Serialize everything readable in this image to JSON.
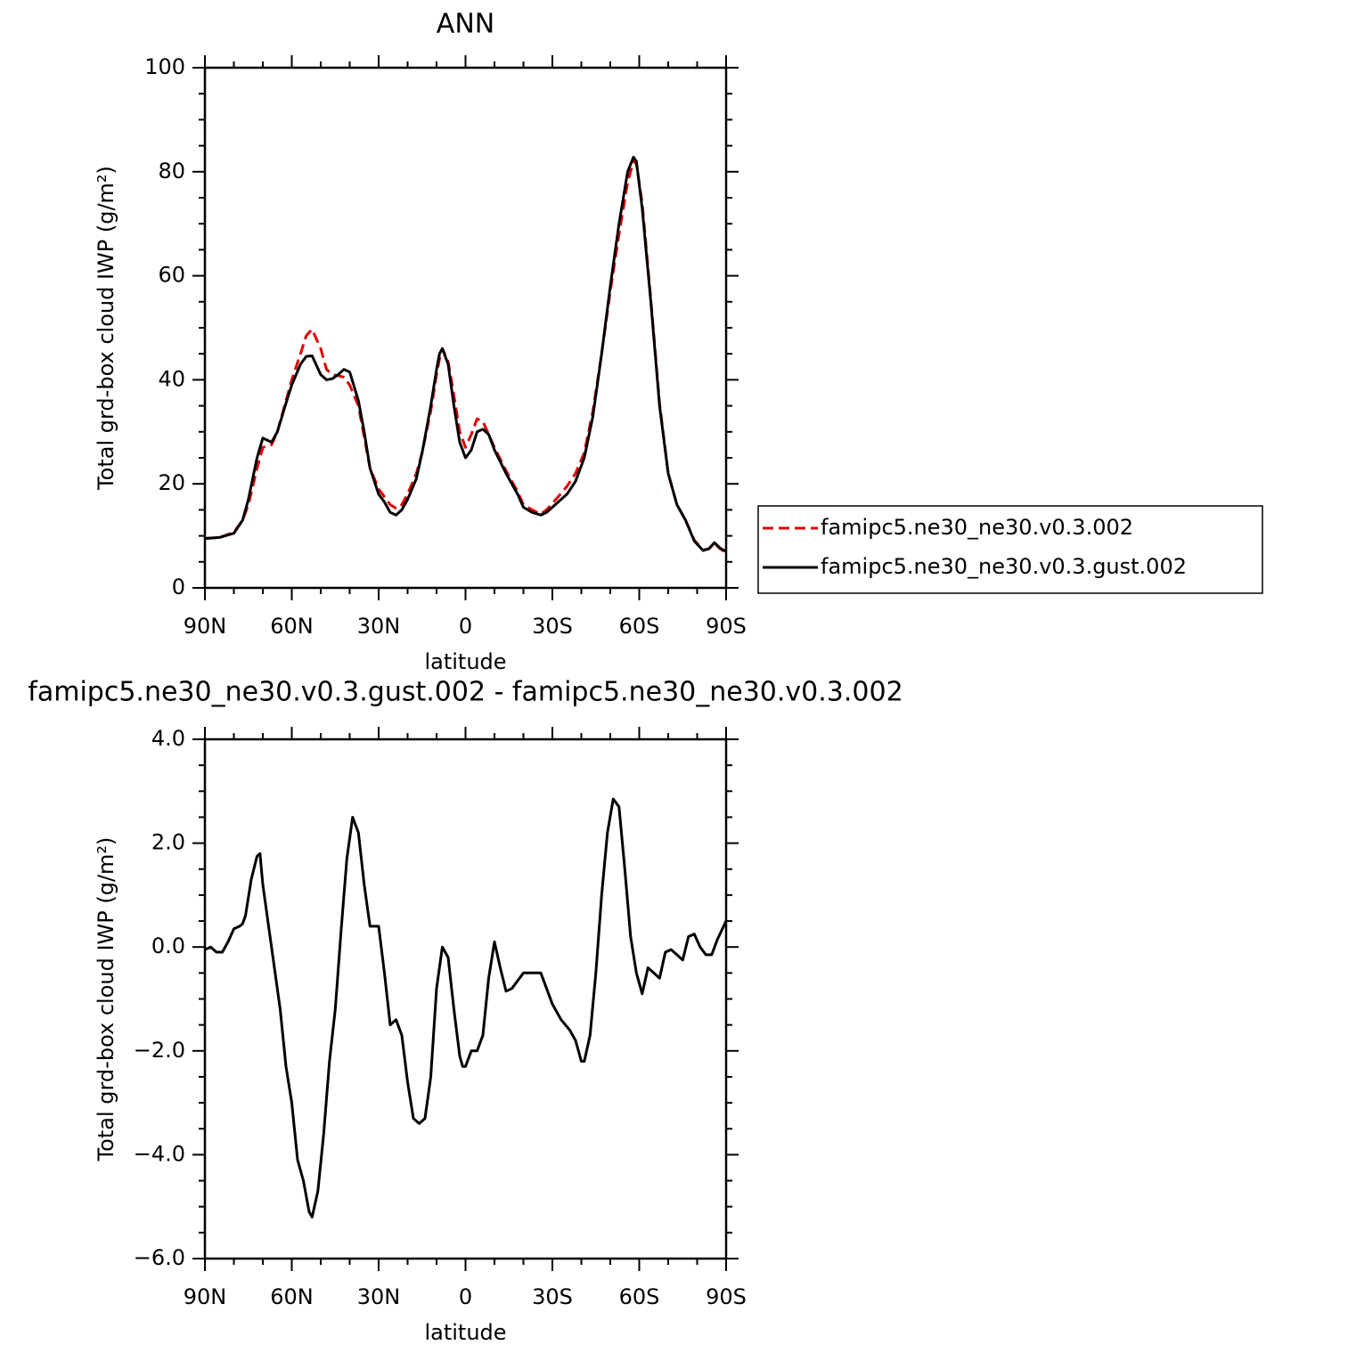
{
  "chart_data": [
    {
      "type": "line",
      "title": "ANN",
      "xlabel": "latitude",
      "ylabel": "Total grd-box cloud IWP (g/m²)",
      "x": [
        90,
        85,
        80,
        77,
        75,
        72,
        70,
        67,
        65,
        62,
        60,
        57,
        55,
        53,
        50,
        48,
        46,
        44,
        42,
        40,
        37,
        35,
        33,
        30,
        28,
        26,
        24,
        22,
        20,
        17,
        15,
        12,
        10,
        9,
        8,
        6,
        4,
        2,
        0,
        -2,
        -4,
        -6,
        -8,
        -10,
        -14,
        -18,
        -20,
        -23,
        -26,
        -28,
        -32,
        -35,
        -38,
        -41,
        -44,
        -47,
        -50,
        -53,
        -56,
        -58,
        -59,
        -61,
        -64,
        -67,
        -70,
        -73,
        -76,
        -79,
        -82,
        -84,
        -86,
        -88,
        -90
      ],
      "series": [
        {
          "name": "famipc5.ne30_ne30.v0.3.002",
          "color": "#e00000",
          "dashed": true,
          "values": [
            9.5,
            9.7,
            10.7,
            13,
            16,
            23,
            27,
            27.5,
            30,
            36,
            40,
            45,
            48.5,
            49.7,
            46,
            42,
            41,
            40.8,
            40.5,
            39,
            35,
            29,
            23,
            19,
            17.5,
            16,
            15.3,
            16,
            18,
            22,
            26,
            34,
            41,
            44,
            46,
            43.5,
            37,
            30,
            27,
            29.5,
            32.5,
            32,
            29.5,
            27,
            22.5,
            18.5,
            16,
            15,
            14.2,
            15,
            17.5,
            19.5,
            22,
            26,
            34,
            45,
            57,
            68,
            78,
            82,
            81.5,
            74,
            55.5,
            35.5,
            22,
            16,
            13,
            9.2,
            7.3,
            7.5,
            8.5,
            7.5,
            6.8
          ]
        },
        {
          "name": "famipc5.ne30_ne30.v0.3.gust.002",
          "color": "#000000",
          "dashed": false,
          "values": [
            9.5,
            9.7,
            10.5,
            13,
            17,
            25,
            28.8,
            28,
            30,
            35.5,
            39,
            43,
            44.5,
            44.6,
            41,
            40,
            40.2,
            41,
            42,
            41.5,
            36,
            30,
            23,
            18,
            16.5,
            14.5,
            14,
            15,
            17,
            21,
            26,
            35,
            42,
            45,
            46,
            43,
            35,
            28,
            25,
            26.5,
            30,
            30.5,
            29.5,
            26.5,
            22,
            18,
            15.5,
            14.5,
            14,
            14.5,
            16.5,
            18,
            20.5,
            25,
            33,
            45,
            58,
            70,
            80,
            82.8,
            82,
            73,
            55,
            35,
            22,
            16,
            13,
            9,
            7.2,
            7.5,
            8.7,
            7.6,
            7
          ]
        }
      ],
      "xlim": [
        90,
        -90
      ],
      "xticks": [
        {
          "value": 90,
          "label": "90N"
        },
        {
          "value": 60,
          "label": "60N"
        },
        {
          "value": 30,
          "label": "30N"
        },
        0,
        {
          "value": -30,
          "label": "30S"
        },
        {
          "value": -60,
          "label": "60S"
        },
        {
          "value": -90,
          "label": "90S"
        }
      ],
      "ylim": [
        0,
        100
      ],
      "yticks": [
        0,
        20,
        40,
        60,
        80,
        100
      ],
      "xminor": 2,
      "yminor": 3,
      "legend": "right"
    },
    {
      "type": "line",
      "title": "famipc5.ne30_ne30.v0.3.gust.002 - famipc5.ne30_ne30.v0.3.002",
      "xlabel": "latitude",
      "ylabel": "Total grd-box cloud IWP (g/m²)",
      "x": [
        90,
        88,
        86,
        84,
        82,
        80,
        78,
        77,
        76,
        74,
        72,
        71,
        70,
        68,
        66,
        64,
        62,
        60,
        58,
        56,
        54,
        53,
        51,
        49,
        47,
        45,
        43,
        41,
        39,
        37,
        35,
        33,
        31,
        30,
        28,
        26,
        24,
        22,
        20,
        18,
        16,
        14,
        12,
        10,
        8,
        6,
        4,
        2,
        1,
        0,
        -2,
        -4,
        -6,
        -8,
        -10,
        -12,
        -14,
        -16,
        -18,
        -20,
        -23,
        -26,
        -28,
        -30,
        -33,
        -36,
        -38,
        -40,
        -41,
        -43,
        -45,
        -47,
        -49,
        -51,
        -53,
        -55,
        -57,
        -59,
        -61,
        -63,
        -65,
        -67,
        -69,
        -71,
        -73,
        -75,
        -77,
        -79,
        -81,
        -83,
        -85,
        -87,
        -90
      ],
      "series": [
        {
          "color": "#000000",
          "dashed": false,
          "values": [
            -0.05,
            0,
            -0.1,
            -0.1,
            0.1,
            0.35,
            0.4,
            0.45,
            0.6,
            1.3,
            1.75,
            1.8,
            1.2,
            0.4,
            -0.4,
            -1.2,
            -2.3,
            -3.0,
            -4.1,
            -4.5,
            -5.1,
            -5.2,
            -4.7,
            -3.6,
            -2.2,
            -1.2,
            0.3,
            1.7,
            2.5,
            2.2,
            1.2,
            0.4,
            0.4,
            0.4,
            -0.5,
            -1.5,
            -1.4,
            -1.7,
            -2.6,
            -3.3,
            -3.4,
            -3.3,
            -2.5,
            -0.8,
            0,
            -0.2,
            -1.2,
            -2.1,
            -2.3,
            -2.3,
            -2,
            -2,
            -1.7,
            -0.6,
            0.1,
            -0.4,
            -0.85,
            -0.8,
            -0.65,
            -0.5,
            -0.5,
            -0.5,
            -0.8,
            -1.1,
            -1.4,
            -1.6,
            -1.8,
            -2.2,
            -2.2,
            -1.7,
            -0.5,
            1,
            2.2,
            2.85,
            2.7,
            1.5,
            0.2,
            -0.5,
            -0.9,
            -0.4,
            -0.5,
            -0.6,
            -0.1,
            -0.05,
            -0.15,
            -0.25,
            0.2,
            0.25,
            0,
            -0.15,
            -0.15,
            0.15,
            0.5
          ]
        }
      ],
      "xlim": [
        90,
        -90
      ],
      "xticks": [
        {
          "value": 90,
          "label": "90N"
        },
        {
          "value": 60,
          "label": "60N"
        },
        {
          "value": 30,
          "label": "30N"
        },
        0,
        {
          "value": -30,
          "label": "30S"
        },
        {
          "value": -60,
          "label": "60S"
        },
        {
          "value": -90,
          "label": "90S"
        }
      ],
      "ylim": [
        -6,
        4
      ],
      "yticks": [
        {
          "value": -6,
          "label": "−6.0"
        },
        {
          "value": -4,
          "label": "−4.0"
        },
        {
          "value": -2,
          "label": "−2.0"
        },
        {
          "value": 0,
          "label": "0.0"
        },
        {
          "value": 2,
          "label": "2.0"
        },
        {
          "value": 4,
          "label": "4.0"
        }
      ],
      "xminor": 2,
      "yminor": 3
    }
  ]
}
